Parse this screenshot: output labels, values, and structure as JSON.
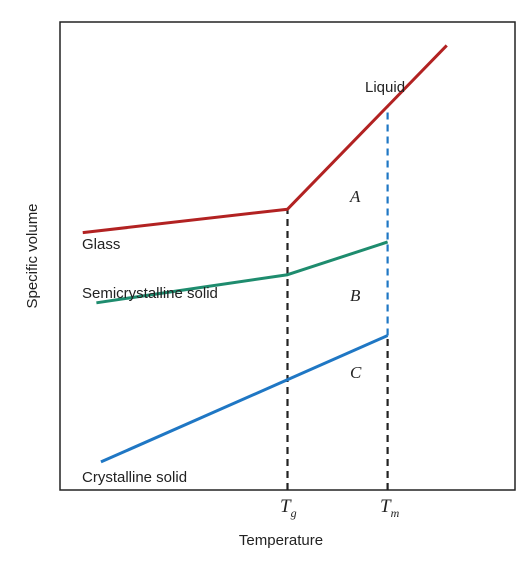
{
  "chart_data": {
    "type": "line",
    "xlabel": "Temperature",
    "ylabel": "Specific volume",
    "ticks": [
      {
        "base": "T",
        "sub": "g"
      },
      {
        "base": "T",
        "sub": "m"
      }
    ],
    "region_labels": [
      "A",
      "B",
      "C"
    ],
    "annotations": [
      "Liquid",
      "Glass",
      "Semicrystalline solid",
      "Crystalline solid"
    ],
    "series": [
      {
        "name": "Glass",
        "color": "#b22222",
        "points": [
          [
            0.05,
            0.55
          ],
          [
            0.5,
            0.6
          ],
          [
            0.72,
            0.82
          ],
          [
            0.85,
            0.95
          ]
        ]
      },
      {
        "name": "Semicrystalline solid",
        "color": "#1e8c6e",
        "points": [
          [
            0.08,
            0.4
          ],
          [
            0.5,
            0.46
          ],
          [
            0.72,
            0.53
          ]
        ]
      },
      {
        "name": "Crystalline solid",
        "color": "#1f77c4",
        "points": [
          [
            0.09,
            0.06
          ],
          [
            0.72,
            0.33
          ]
        ]
      }
    ],
    "dashed_lines": [
      {
        "x": 0.5,
        "y_from": 0.0,
        "y_to": 0.6,
        "color": "#222222"
      },
      {
        "x": 0.72,
        "y_from": 0.0,
        "y_to": 0.33,
        "color": "#222222"
      },
      {
        "x": 0.72,
        "y_from": 0.33,
        "y_to": 0.82,
        "color": "#1f77c4"
      }
    ],
    "xlim": [
      0,
      1
    ],
    "ylim": [
      0,
      1
    ],
    "grid": false,
    "legend": "none"
  }
}
